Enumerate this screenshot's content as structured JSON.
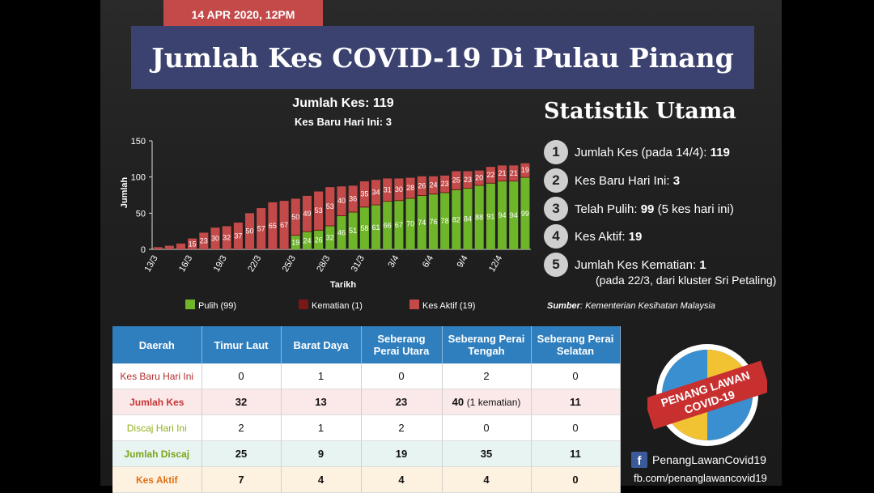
{
  "header": {
    "date": "14 APR 2020, 12PM",
    "title": "Jumlah Kes COVID-19 Di Pulau Pinang"
  },
  "chart_data": {
    "type": "bar",
    "stacked": true,
    "title": "Jumlah Kes: 119",
    "subtitle": "Kes Baru Hari Ini: 3",
    "xlabel": "Tarikh",
    "ylabel": "Jumlah",
    "ylim": [
      0,
      150
    ],
    "yticks": [
      0,
      50,
      100,
      150
    ],
    "grid": false,
    "legend_position": "bottom",
    "categories": [
      "13/3",
      "14/3",
      "15/3",
      "16/3",
      "17/3",
      "18/3",
      "19/3",
      "20/3",
      "21/3",
      "22/3",
      "23/3",
      "24/3",
      "25/3",
      "26/3",
      "27/3",
      "28/3",
      "29/3",
      "30/3",
      "31/3",
      "1/4",
      "2/4",
      "3/4",
      "4/4",
      "5/4",
      "6/4",
      "7/4",
      "8/4",
      "9/4",
      "10/4",
      "11/4",
      "12/4",
      "13/4",
      "14/4"
    ],
    "xtick_labels": [
      "13/3",
      "16/3",
      "19/3",
      "22/3",
      "25/3",
      "28/3",
      "31/3",
      "3/4",
      "6/4",
      "9/4",
      "12/4"
    ],
    "series": [
      {
        "name": "Pulih (99)",
        "color": "#6eb52a",
        "values": [
          0,
          0,
          0,
          0,
          0,
          0,
          0,
          0,
          0,
          0,
          0,
          0,
          19,
          24,
          26,
          32,
          46,
          51,
          58,
          61,
          66,
          67,
          70,
          74,
          76,
          78,
          82,
          84,
          88,
          91,
          94,
          94,
          99
        ]
      },
      {
        "name": "Kematian (1)",
        "color": "#7a1818",
        "values": [
          0,
          0,
          0,
          0,
          0,
          0,
          0,
          0,
          0,
          0,
          0,
          0,
          1,
          1,
          1,
          1,
          1,
          1,
          1,
          1,
          1,
          1,
          1,
          1,
          1,
          1,
          1,
          1,
          1,
          1,
          1,
          1,
          1
        ]
      },
      {
        "name": "Kes Aktif (19)",
        "color": "#c44a4a",
        "values": [
          3,
          5,
          8,
          15,
          23,
          30,
          32,
          37,
          50,
          57,
          65,
          67,
          50,
          49,
          53,
          53,
          40,
          36,
          35,
          34,
          31,
          30,
          28,
          26,
          24,
          23,
          25,
          23,
          20,
          22,
          21,
          21,
          19
        ]
      }
    ]
  },
  "stats": {
    "heading": "Statistik Utama",
    "items": [
      {
        "num": "1",
        "label": "Jumlah Kes (pada 14/4): ",
        "value": "119",
        "suffix": ""
      },
      {
        "num": "2",
        "label": "Kes Baru Hari Ini: ",
        "value": "3",
        "suffix": ""
      },
      {
        "num": "3",
        "label": "Telah Pulih: ",
        "value": "99",
        "suffix": " (5 kes hari ini)"
      },
      {
        "num": "4",
        "label": "Kes Aktif: ",
        "value": "19",
        "suffix": ""
      },
      {
        "num": "5",
        "label": "Jumlah Kes Kematian: ",
        "value": "1",
        "suffix": ""
      }
    ],
    "death_note": "(pada 22/3, dari kluster Sri Petaling)",
    "source_label": "Sumber",
    "source_text": ": Kementerian Kesihatan Malaysia"
  },
  "table": {
    "headers": [
      "Daerah",
      "Timur Laut",
      "Barat Daya",
      "Seberang Perai Utara",
      "Seberang Perai Tengah",
      "Seberang Perai Selatan"
    ],
    "rows": [
      {
        "label": "Kes Baru Hari Ini",
        "values": [
          "0",
          "1",
          "0",
          "2",
          "0"
        ]
      },
      {
        "label": "Jumlah Kes",
        "values": [
          "32",
          "13",
          "23",
          "40",
          "11"
        ],
        "note": "(1 kematian)"
      },
      {
        "label": "Discaj Hari Ini",
        "values": [
          "2",
          "1",
          "2",
          "0",
          "0"
        ]
      },
      {
        "label": "Jumlah Discaj",
        "values": [
          "25",
          "9",
          "19",
          "35",
          "11"
        ]
      },
      {
        "label": "Kes Aktif",
        "values": [
          "7",
          "4",
          "4",
          "4",
          "0"
        ]
      }
    ]
  },
  "logo": {
    "line1": "PENANG LAWAN",
    "line2": "COVID-19"
  },
  "social": {
    "icon": "facebook-icon",
    "name": "PenangLawanCovid19",
    "url": "fb.com/penanglawancovid19"
  }
}
